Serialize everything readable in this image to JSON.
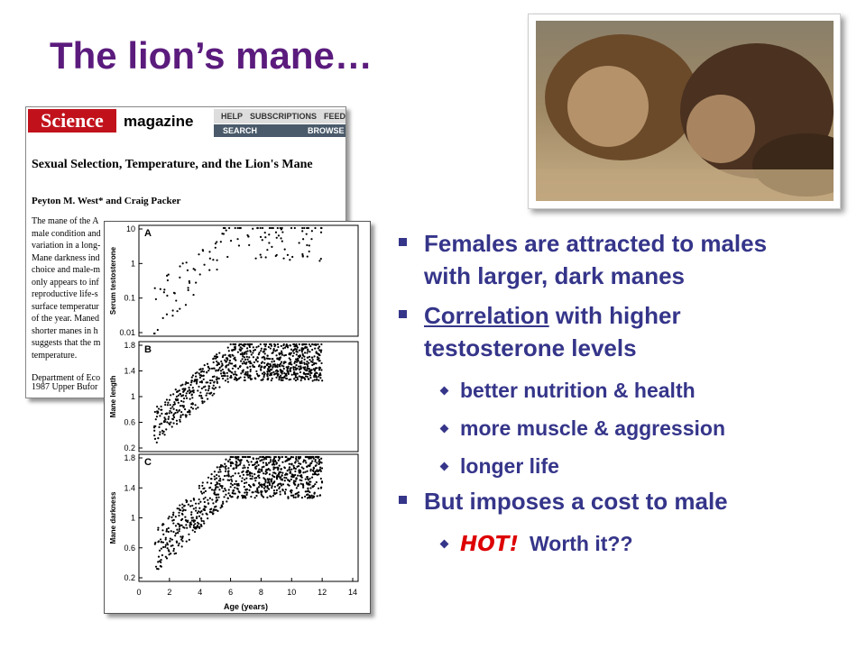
{
  "title": "The lion’s mane…",
  "science_page": {
    "logo": "Science",
    "section": "magazine",
    "nav": [
      "HELP",
      "SUBSCRIPTIONS",
      "FEED"
    ],
    "nav2": [
      "SEARCH",
      "BROWSE"
    ],
    "article_title": "Sexual Selection, Temperature, and the Lion's Mane",
    "authors": "Peyton M. West* and Craig Packer",
    "abstract_lines": [
      "The mane of the A",
      "male condition and",
      "variation in a long-",
      "Mane darkness ind",
      "choice and male-m",
      "only appears to inf",
      "reproductive life-s",
      "surface temperatur",
      "of the year. Maned",
      "shorter manes in h",
      "suggests that the m",
      "temperature."
    ],
    "address_lines": [
      "Department of Eco",
      "1987 Upper Bufor"
    ]
  },
  "figure": {
    "panels": [
      {
        "letter": "A",
        "ylabel": "Serum testosterone",
        "yticks": [
          "10",
          "1",
          "0.1",
          "0.01"
        ]
      },
      {
        "letter": "B",
        "ylabel": "Mane length",
        "yticks": [
          "1.8",
          "1.4",
          "1",
          "0.6",
          "0.2"
        ]
      },
      {
        "letter": "C",
        "ylabel": "Mane darkness",
        "yticks": [
          "1.8",
          "1.4",
          "1",
          "0.6",
          "0.2"
        ]
      }
    ],
    "xticks": [
      "0",
      "2",
      "4",
      "6",
      "8",
      "10",
      "12",
      "14"
    ],
    "xlabel": "Age (years)"
  },
  "bullets": [
    {
      "text": "Females are attracted to males with larger, dark manes"
    },
    {
      "underlined": "Correlation",
      "text": " with higher testosterone levels",
      "sub": [
        {
          "text": "better nutrition & health"
        },
        {
          "text": "more muscle & aggression"
        },
        {
          "text": "longer life"
        }
      ]
    },
    {
      "text": "But imposes a cost to male",
      "sub": [
        {
          "emph": "HOT!",
          "text": "Worth it??"
        }
      ]
    }
  ]
}
